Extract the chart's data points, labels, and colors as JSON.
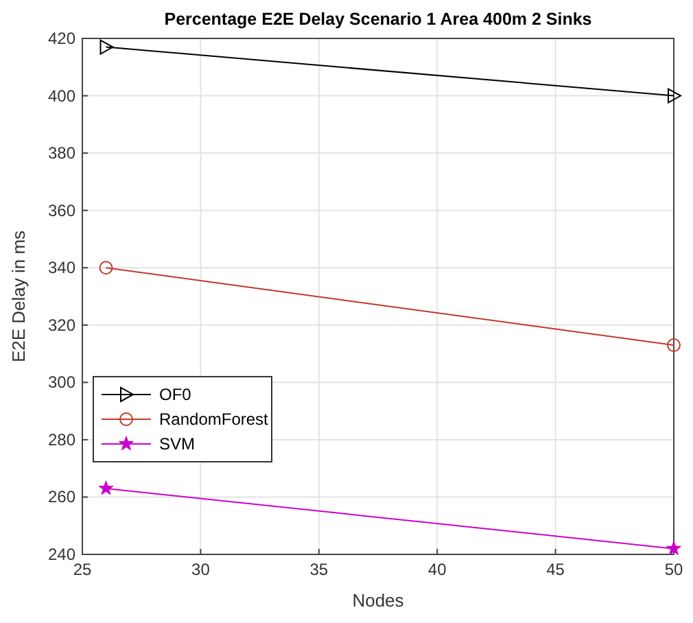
{
  "chart_data": {
    "type": "line",
    "title": "Percentage E2E Delay Scenario 1 Area 400m  2 Sinks",
    "xlabel": "Nodes",
    "ylabel": "E2E Delay in ms",
    "x": [
      26,
      50
    ],
    "series": [
      {
        "name": "OF0",
        "color": "#000000",
        "values": [
          417,
          400
        ],
        "marker": "triangle"
      },
      {
        "name": "RandomForest",
        "color": "#c0392b",
        "values": [
          340,
          313
        ],
        "marker": "circle"
      },
      {
        "name": "SVM",
        "color": "#cc00cc",
        "values": [
          263,
          242
        ],
        "marker": "star"
      }
    ],
    "xlim": [
      25,
      50
    ],
    "xticks": [
      25,
      30,
      35,
      40,
      45,
      50
    ],
    "ylim": [
      240,
      420
    ],
    "yticks": [
      240,
      260,
      280,
      300,
      320,
      340,
      360,
      380,
      400,
      420
    ],
    "grid": true,
    "legend": "bottom left",
    "line_style": "solid"
  }
}
